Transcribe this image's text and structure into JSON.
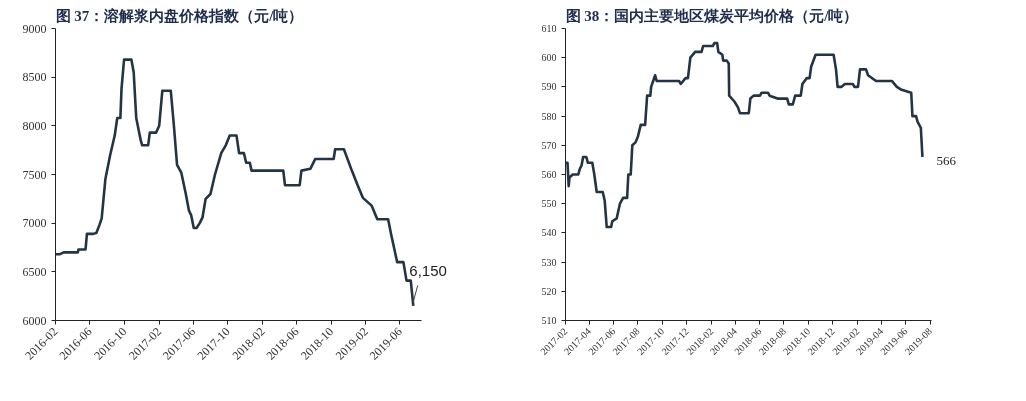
{
  "chart_data": [
    {
      "type": "line",
      "title": "图 37：溶解浆内盘价格指数（元/吨）",
      "x": [
        "2016-02-01",
        "2016-02-15",
        "2016-03-01",
        "2016-04-20",
        "2016-04-22",
        "2016-05-17",
        "2016-05-22",
        "2016-06-13",
        "2016-06-24",
        "2016-07-05",
        "2016-07-13",
        "2016-07-26",
        "2016-08-12",
        "2016-08-28",
        "2016-09-06",
        "2016-09-17",
        "2016-09-21",
        "2016-09-30",
        "2016-10-26",
        "2016-11-03",
        "2016-11-12",
        "2016-11-28",
        "2016-12-03",
        "2016-12-24",
        "2016-12-30",
        "2017-01-21",
        "2017-02-01",
        "2017-02-12",
        "2017-03-14",
        "2017-03-25",
        "2017-04-05",
        "2017-04-20",
        "2017-05-06",
        "2017-05-17",
        "2017-05-25",
        "2017-06-03",
        "2017-06-13",
        "2017-06-24",
        "2017-07-04",
        "2017-07-15",
        "2017-08-01",
        "2017-08-17",
        "2017-09-08",
        "2017-09-24",
        "2017-10-08",
        "2017-11-01",
        "2017-11-10",
        "2017-11-27",
        "2017-12-05",
        "2017-12-18",
        "2017-12-24",
        "2018-02-21",
        "2018-02-27",
        "2018-04-15",
        "2018-04-21",
        "2018-06-12",
        "2018-06-18",
        "2018-07-20",
        "2018-08-06",
        "2018-10-10",
        "2018-10-15",
        "2018-11-15",
        "2018-12-13",
        "2019-01-04",
        "2019-01-21",
        "2019-02-21",
        "2019-03-13",
        "2019-04-20",
        "2019-05-01",
        "2019-05-22",
        "2019-06-13",
        "2019-06-24",
        "2019-07-09",
        "2019-07-18"
      ],
      "values": [
        6680,
        6680,
        6700,
        6700,
        6730,
        6730,
        6890,
        6890,
        6900,
        6980,
        7050,
        7450,
        7700,
        7900,
        8080,
        8080,
        8380,
        8680,
        8680,
        8550,
        8080,
        7850,
        7800,
        7800,
        7930,
        7930,
        8000,
        8360,
        8360,
        8000,
        7600,
        7520,
        7300,
        7130,
        7080,
        6950,
        6950,
        7000,
        7060,
        7250,
        7300,
        7500,
        7720,
        7800,
        7900,
        7900,
        7720,
        7720,
        7620,
        7620,
        7540,
        7540,
        7540,
        7540,
        7390,
        7390,
        7540,
        7560,
        7660,
        7660,
        7760,
        7760,
        7540,
        7380,
        7260,
        7180,
        7040,
        7040,
        6880,
        6600,
        6600,
        6410,
        6410,
        6150
      ],
      "color": "#253444",
      "line_style": "solid",
      "marker": "none",
      "xlim": [
        "2016-02-01",
        "2019-08-15"
      ],
      "ylim": [
        6000,
        9000
      ],
      "xticks": [
        "2016-02",
        "2016-06",
        "2016-10",
        "2017-02",
        "2017-06",
        "2017-10",
        "2018-02",
        "2018-06",
        "2018-10",
        "2019-02",
        "2019-06"
      ],
      "yticks": [
        6000,
        6500,
        7000,
        7500,
        8000,
        8500,
        9000
      ],
      "grid": false,
      "annotations": [
        {
          "text": "6,150",
          "x": "2019-07-18",
          "y": 6150
        }
      ]
    },
    {
      "type": "line",
      "title": "图 38：国内主要地区煤炭平均价格（元/吨）",
      "x": [
        "2017-02-01",
        "2017-02-06",
        "2017-02-09",
        "2017-02-11",
        "2017-02-19",
        "2017-03-05",
        "2017-03-09",
        "2017-03-13",
        "2017-03-17",
        "2017-03-25",
        "2017-03-29",
        "2017-04-09",
        "2017-04-14",
        "2017-04-20",
        "2017-05-05",
        "2017-05-10",
        "2017-05-15",
        "2017-05-26",
        "2017-05-29",
        "2017-06-09",
        "2017-06-17",
        "2017-06-25",
        "2017-07-05",
        "2017-07-08",
        "2017-07-14",
        "2017-07-18",
        "2017-07-26",
        "2017-08-01",
        "2017-08-08",
        "2017-08-19",
        "2017-08-24",
        "2017-09-01",
        "2017-09-03",
        "2017-09-13",
        "2017-09-17",
        "2017-11-12",
        "2017-11-16",
        "2017-11-28",
        "2017-12-04",
        "2017-12-10",
        "2017-12-22",
        "2018-01-07",
        "2018-01-11",
        "2018-02-04",
        "2018-02-08",
        "2018-02-15",
        "2018-02-18",
        "2018-02-28",
        "2018-03-02",
        "2018-03-11",
        "2018-03-16",
        "2018-03-17",
        "2018-03-30",
        "2018-04-08",
        "2018-04-13",
        "2018-05-05",
        "2018-05-09",
        "2018-05-17",
        "2018-06-02",
        "2018-06-06",
        "2018-06-22",
        "2018-06-26",
        "2018-07-16",
        "2018-08-09",
        "2018-08-13",
        "2018-08-23",
        "2018-08-29",
        "2018-09-12",
        "2018-09-16",
        "2018-09-27",
        "2018-10-04",
        "2018-10-08",
        "2018-10-19",
        "2018-12-03",
        "2018-12-09",
        "2018-12-13",
        "2018-12-23",
        "2018-12-31",
        "2019-01-20",
        "2019-01-24",
        "2019-02-02",
        "2019-02-07",
        "2019-02-22",
        "2019-02-27",
        "2019-03-19",
        "2019-03-27",
        "2019-04-28",
        "2019-05-10",
        "2019-05-22",
        "2019-06-15",
        "2019-06-18",
        "2019-06-27",
        "2019-07-01",
        "2019-07-09",
        "2019-07-13"
      ],
      "values": [
        564,
        564,
        556,
        559,
        560,
        560,
        562,
        563,
        566,
        566,
        564,
        564,
        560,
        554,
        554,
        551,
        542,
        542,
        544,
        545,
        550,
        552,
        552,
        560,
        560,
        570,
        571,
        573,
        577,
        577,
        587,
        587,
        590,
        594,
        592,
        592,
        591,
        593,
        593,
        600,
        602,
        602,
        604,
        604,
        605,
        605,
        602,
        601,
        599,
        599,
        598,
        587,
        585,
        583,
        581,
        581,
        586,
        587,
        587,
        588,
        588,
        587,
        586,
        586,
        584,
        584,
        587,
        587,
        591,
        593,
        593,
        597,
        601,
        601,
        596,
        590,
        590,
        591,
        591,
        590,
        590,
        596,
        596,
        594,
        592,
        592,
        592,
        590,
        589,
        588,
        580,
        580,
        578,
        576,
        566
      ],
      "color": "#253444",
      "line_style": "solid",
      "marker": "none",
      "xlim": [
        "2017-02-01",
        "2019-08-04"
      ],
      "ylim": [
        510,
        610
      ],
      "xticks": [
        "2017-02",
        "2017-04",
        "2017-06",
        "2017-08",
        "2017-10",
        "2017-12",
        "2018-02",
        "2018-04",
        "2018-06",
        "2018-08",
        "2018-10",
        "2018-12",
        "2019-02",
        "2019-04",
        "2019-06",
        "2019-08"
      ],
      "yticks": [
        510,
        520,
        530,
        540,
        550,
        560,
        570,
        580,
        590,
        600,
        610
      ],
      "grid": false,
      "annotations": [
        {
          "text": "566",
          "x": "2019-07-13",
          "y": 566
        }
      ]
    }
  ]
}
